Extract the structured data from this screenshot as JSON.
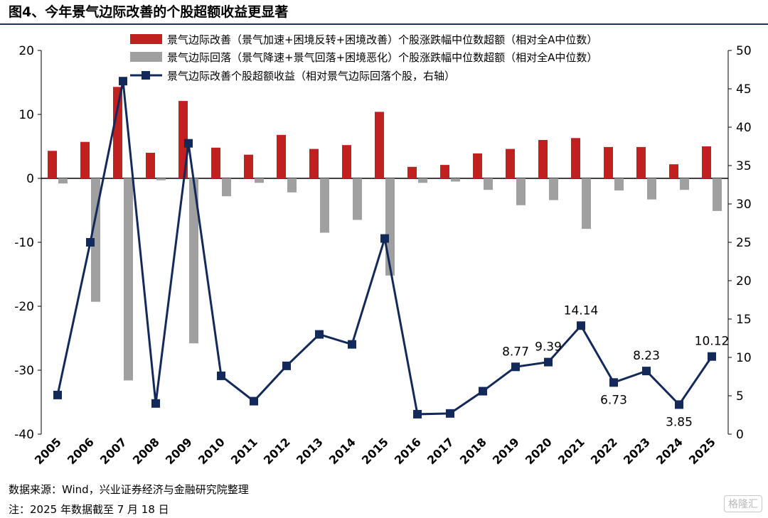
{
  "title": "图4、今年景气边际改善的个股超额收益更显著",
  "source": "数据来源：Wind，兴业证券经济与金融研究院整理",
  "note": "注：2025 年数据截至 7 月 18 日",
  "watermark": "格隆汇",
  "colors": {
    "improve": "#c0201f",
    "worsen": "#a0a0a0",
    "line": "#13295a",
    "text": "#000000"
  },
  "chart_data": {
    "type": "bar+line",
    "categories": [
      "2005",
      "2006",
      "2007",
      "2008",
      "2009",
      "2010",
      "2011",
      "2012",
      "2013",
      "2014",
      "2015",
      "2016",
      "2017",
      "2018",
      "2019",
      "2020",
      "2021",
      "2022",
      "2023",
      "2024",
      "2025"
    ],
    "y_left": {
      "range": [
        -40,
        20
      ],
      "ticks": [
        20,
        10,
        0,
        -10,
        -20,
        -30,
        -40
      ]
    },
    "y_right": {
      "range": [
        0,
        50
      ],
      "ticks": [
        50,
        45,
        40,
        35,
        30,
        25,
        20,
        15,
        10,
        5,
        0
      ]
    },
    "series": [
      {
        "name": "景气边际改善（景气加速+困境反转+困境改善）个股涨跌幅中位数超额（相对全A中位数）",
        "type": "bar",
        "axis": "left",
        "color": "#c0201f",
        "values": [
          4.3,
          5.7,
          14.3,
          4.0,
          12.1,
          4.8,
          3.7,
          6.8,
          4.6,
          5.2,
          10.4,
          1.8,
          2.1,
          3.9,
          4.6,
          6.0,
          6.3,
          4.9,
          4.9,
          2.2,
          5.0
        ]
      },
      {
        "name": "景气边际回落（景气降速+景气回落+困境恶化）个股涨跌幅中位数超额（相对全A中位数）",
        "type": "bar",
        "axis": "left",
        "color": "#a0a0a0",
        "values": [
          -0.8,
          -19.3,
          -31.6,
          -0.3,
          -25.8,
          -2.8,
          -0.7,
          -2.2,
          -8.5,
          -6.5,
          -15.2,
          -0.7,
          -0.5,
          -1.8,
          -4.2,
          -3.4,
          -7.9,
          -1.9,
          -3.3,
          -1.8,
          -5.1
        ]
      },
      {
        "name": "景气边际改善个股超额收益（相对景气边际回落个股，右轴）",
        "type": "line",
        "axis": "right",
        "color": "#13295a",
        "values": [
          5.1,
          25.0,
          46.0,
          4.0,
          37.9,
          7.6,
          4.3,
          8.9,
          13.0,
          11.7,
          25.5,
          2.6,
          2.7,
          5.6,
          8.77,
          9.39,
          14.14,
          6.73,
          8.23,
          3.85,
          10.12
        ]
      }
    ],
    "data_labels": [
      {
        "index": 14,
        "text": "8.77",
        "pos": "above"
      },
      {
        "index": 15,
        "text": "9.39",
        "pos": "above"
      },
      {
        "index": 16,
        "text": "14.14",
        "pos": "above"
      },
      {
        "index": 17,
        "text": "6.73",
        "pos": "below"
      },
      {
        "index": 18,
        "text": "8.23",
        "pos": "above"
      },
      {
        "index": 19,
        "text": "3.85",
        "pos": "below"
      },
      {
        "index": 20,
        "text": "10.12",
        "pos": "above"
      }
    ]
  }
}
